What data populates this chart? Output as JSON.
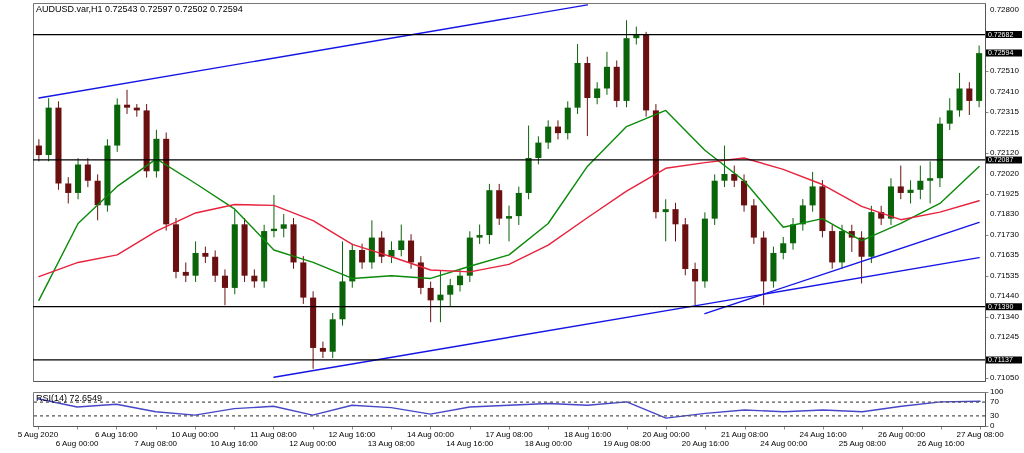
{
  "chart_data": [
    {
      "type": "candlestick",
      "title": "AUDUSD.var,H1  0.72543 0.72597 0.72502 0.72594",
      "categories": [
        "5 Aug 2020",
        null,
        null,
        null,
        "6 Aug 00:00",
        null,
        null,
        null,
        "6 Aug 16:00",
        null,
        null,
        null,
        "7 Aug 08:00",
        null,
        null,
        null,
        "10 Aug 00:00",
        null,
        null,
        null,
        "10 Aug 16:00",
        null,
        null,
        null,
        "11 Aug 08:00",
        null,
        null,
        null,
        "12 Aug 00:00",
        null,
        null,
        null,
        "12 Aug 16:00",
        null,
        null,
        null,
        "13 Aug 08:00",
        null,
        null,
        null,
        "14 Aug 00:00",
        null,
        null,
        null,
        "14 Aug 16:00",
        null,
        null,
        null,
        "17 Aug 08:00",
        null,
        null,
        null,
        "18 Aug 00:00",
        null,
        null,
        null,
        "18 Aug 16:00",
        null,
        null,
        null,
        "19 Aug 08:00",
        null,
        null,
        null,
        "20 Aug 00:00",
        null,
        null,
        null,
        "20 Aug 16:00",
        null,
        null,
        null,
        "21 Aug 08:00",
        null,
        null,
        null,
        "24 Aug 00:00",
        null,
        null,
        null,
        "24 Aug 16:00",
        null,
        null,
        null,
        "25 Aug 08:00",
        null,
        null,
        null,
        "26 Aug 00:00",
        null,
        null,
        null,
        "26 Aug 16:00",
        null,
        null,
        null,
        "27 Aug 08:00"
      ],
      "ohlc": [
        [
          0.72155,
          0.72185,
          0.7208,
          0.7211
        ],
        [
          0.7211,
          0.7238,
          0.7208,
          0.72335
        ],
        [
          0.72335,
          0.72365,
          0.71945,
          0.71975
        ],
        [
          0.71975,
          0.72005,
          0.7188,
          0.7193
        ],
        [
          0.7193,
          0.72095,
          0.719,
          0.72065
        ],
        [
          0.72065,
          0.72095,
          0.71958,
          0.71988
        ],
        [
          0.71988,
          0.72018,
          0.718,
          0.71871
        ],
        [
          0.71871,
          0.72185,
          0.71841,
          0.72155
        ],
        [
          0.72155,
          0.72379,
          0.72125,
          0.72349
        ],
        [
          0.72349,
          0.7242,
          0.72305,
          0.72335
        ],
        [
          0.72335,
          0.72352,
          0.72292,
          0.72322
        ],
        [
          0.72322,
          0.72352,
          0.72003,
          0.72033
        ],
        [
          0.72033,
          0.7223,
          0.72003,
          0.72187
        ],
        [
          0.72187,
          0.72217,
          0.71751,
          0.71781
        ],
        [
          0.71781,
          0.71811,
          0.71525,
          0.71555
        ],
        [
          0.71555,
          0.716,
          0.71507,
          0.71537
        ],
        [
          0.71537,
          0.717,
          0.71507,
          0.71645
        ],
        [
          0.71645,
          0.71675,
          0.71597,
          0.71627
        ],
        [
          0.71627,
          0.71657,
          0.71507,
          0.71537
        ],
        [
          0.71537,
          0.71567,
          0.71397,
          0.71479
        ],
        [
          0.71479,
          0.7185,
          0.71449,
          0.71781
        ],
        [
          0.71781,
          0.71811,
          0.71507,
          0.71537
        ],
        [
          0.71537,
          0.71567,
          0.7148,
          0.7151
        ],
        [
          0.7151,
          0.71779,
          0.7148,
          0.71749
        ],
        [
          0.71749,
          0.7192,
          0.71719,
          0.7176
        ],
        [
          0.7176,
          0.7183,
          0.71719,
          0.71781
        ],
        [
          0.71781,
          0.71811,
          0.7157,
          0.716
        ],
        [
          0.716,
          0.7163,
          0.71403,
          0.71433
        ],
        [
          0.71433,
          0.71463,
          0.71095,
          0.71194
        ],
        [
          0.71194,
          0.71224,
          0.71146,
          0.71176
        ],
        [
          0.71176,
          0.7136,
          0.71146,
          0.7133
        ],
        [
          0.7133,
          0.717,
          0.713,
          0.7151
        ],
        [
          0.7151,
          0.71689,
          0.7148,
          0.71659
        ],
        [
          0.71659,
          0.71689,
          0.7157,
          0.716
        ],
        [
          0.716,
          0.718,
          0.7157,
          0.71718
        ],
        [
          0.71718,
          0.71748,
          0.71597,
          0.71627
        ],
        [
          0.71627,
          0.717,
          0.71597,
          0.71659
        ],
        [
          0.71659,
          0.7178,
          0.71629,
          0.71704
        ],
        [
          0.71704,
          0.71734,
          0.7157,
          0.716
        ],
        [
          0.716,
          0.7163,
          0.71449,
          0.71479
        ],
        [
          0.71479,
          0.71509,
          0.71316,
          0.7142
        ],
        [
          0.7142,
          0.7156,
          0.71316,
          0.71447
        ],
        [
          0.71447,
          0.71522,
          0.7139,
          0.71492
        ],
        [
          0.71492,
          0.71567,
          0.71462,
          0.71537
        ],
        [
          0.71537,
          0.71748,
          0.71507,
          0.71718
        ],
        [
          0.71718,
          0.7178,
          0.71688,
          0.7173
        ],
        [
          0.7173,
          0.71973,
          0.71688,
          0.71943
        ],
        [
          0.71943,
          0.71973,
          0.71778,
          0.71808
        ],
        [
          0.71808,
          0.7187,
          0.717,
          0.7182
        ],
        [
          0.7182,
          0.7196,
          0.71778,
          0.7193
        ],
        [
          0.7193,
          0.7225,
          0.719,
          0.72096
        ],
        [
          0.72096,
          0.72199,
          0.72066,
          0.72169
        ],
        [
          0.72169,
          0.72275,
          0.72139,
          0.72245
        ],
        [
          0.72245,
          0.72275,
          0.72184,
          0.72214
        ],
        [
          0.72214,
          0.72365,
          0.72184,
          0.72335
        ],
        [
          0.72335,
          0.72637,
          0.72305,
          0.72547
        ],
        [
          0.72547,
          0.72577,
          0.722,
          0.72381
        ],
        [
          0.72381,
          0.72456,
          0.72351,
          0.72426
        ],
        [
          0.72426,
          0.726,
          0.72396,
          0.72529
        ],
        [
          0.72529,
          0.72559,
          0.72337,
          0.72367
        ],
        [
          0.72367,
          0.7275,
          0.72337,
          0.72665
        ],
        [
          0.72665,
          0.7272,
          0.72635,
          0.7268
        ],
        [
          0.7268,
          0.72695,
          0.72292,
          0.72322
        ],
        [
          0.72322,
          0.72352,
          0.71809,
          0.71839
        ],
        [
          0.71839,
          0.719,
          0.717,
          0.71853
        ],
        [
          0.71853,
          0.71883,
          0.717,
          0.71781
        ],
        [
          0.71781,
          0.71811,
          0.71539,
          0.71569
        ],
        [
          0.71569,
          0.71599,
          0.71397,
          0.7151
        ],
        [
          0.7151,
          0.71838,
          0.7148,
          0.71808
        ],
        [
          0.71808,
          0.72018,
          0.71778,
          0.71988
        ],
        [
          0.71988,
          0.72155,
          0.71958,
          0.7202
        ],
        [
          0.7202,
          0.7206,
          0.71958,
          0.71988
        ],
        [
          0.71988,
          0.72018,
          0.71841,
          0.71871
        ],
        [
          0.71871,
          0.71901,
          0.71688,
          0.71718
        ],
        [
          0.71718,
          0.71748,
          0.71397,
          0.7151
        ],
        [
          0.7151,
          0.71675,
          0.7148,
          0.71645
        ],
        [
          0.71645,
          0.71721,
          0.71615,
          0.71691
        ],
        [
          0.71691,
          0.71811,
          0.71661,
          0.71781
        ],
        [
          0.71781,
          0.71901,
          0.71751,
          0.71871
        ],
        [
          0.71871,
          0.7203,
          0.71841,
          0.71961
        ],
        [
          0.71961,
          0.71991,
          0.71719,
          0.71749
        ],
        [
          0.71749,
          0.71779,
          0.7157,
          0.716
        ],
        [
          0.716,
          0.71779,
          0.7157,
          0.71749
        ],
        [
          0.71749,
          0.71779,
          0.7165,
          0.71718
        ],
        [
          0.71718,
          0.71748,
          0.715,
          0.71627
        ],
        [
          0.71627,
          0.71869,
          0.71597,
          0.71839
        ],
        [
          0.71839,
          0.71869,
          0.71778,
          0.71808
        ],
        [
          0.71808,
          0.72,
          0.71778,
          0.71961
        ],
        [
          0.71961,
          0.7206,
          0.719,
          0.7193
        ],
        [
          0.7193,
          0.7199,
          0.7188,
          0.71945
        ],
        [
          0.71945,
          0.7206,
          0.719,
          0.71988
        ],
        [
          0.71988,
          0.7208,
          0.7188,
          0.72
        ],
        [
          0.72,
          0.72289,
          0.71958,
          0.72259
        ],
        [
          0.72259,
          0.7238,
          0.72229,
          0.72322
        ],
        [
          0.72322,
          0.725,
          0.72292,
          0.72426
        ],
        [
          0.72426,
          0.72456,
          0.723,
          0.72367
        ],
        [
          0.72367,
          0.7263,
          0.72337,
          0.72594
        ]
      ],
      "colors": [
        "#6b1010",
        "#0a640a",
        "#6b1010",
        "#6b1010",
        "#0a640a",
        "#6b1010",
        "#6b1010",
        "#0a640a",
        "#0a640a",
        "#6b1010",
        "#6b1010",
        "#6b1010",
        "#0a640a",
        "#6b1010",
        "#6b1010",
        "#6b1010",
        "#0a640a",
        "#6b1010",
        "#6b1010",
        "#6b1010",
        "#0a640a",
        "#6b1010",
        "#6b1010",
        "#0a640a",
        "#0a640a",
        "#0a640a",
        "#6b1010",
        "#6b1010",
        "#6b1010",
        "#6b1010",
        "#0a640a",
        "#0a640a",
        "#0a640a",
        "#6b1010",
        "#0a640a",
        "#6b1010",
        "#0a640a",
        "#0a640a",
        "#6b1010",
        "#6b1010",
        "#6b1010",
        "#0a640a",
        "#0a640a",
        "#0a640a",
        "#0a640a",
        "#0a640a",
        "#0a640a",
        "#6b1010",
        "#0a640a",
        "#0a640a",
        "#0a640a",
        "#0a640a",
        "#0a640a",
        "#6b1010",
        "#0a640a",
        "#0a640a",
        "#6b1010",
        "#0a640a",
        "#0a640a",
        "#6b1010",
        "#0a640a",
        "#0a640a",
        "#6b1010",
        "#6b1010",
        "#0a640a",
        "#6b1010",
        "#6b1010",
        "#6b1010",
        "#0a640a",
        "#0a640a",
        "#0a640a",
        "#6b1010",
        "#6b1010",
        "#6b1010",
        "#6b1010",
        "#0a640a",
        "#0a640a",
        "#0a640a",
        "#0a640a",
        "#0a640a",
        "#6b1010",
        "#6b1010",
        "#0a640a",
        "#6b1010",
        "#6b1010",
        "#0a640a",
        "#6b1010",
        "#0a640a",
        "#6b1010",
        "#0a640a",
        "#0a640a",
        "#0a640a",
        "#0a640a",
        "#0a640a",
        "#0a640a",
        "#6b1010",
        "#0a640a"
      ],
      "series": [
        {
          "type": "line",
          "color": "#0a8a0a",
          "x": [
            "5 Aug 2020",
            "6 Aug 00:00",
            "6 Aug 16:00",
            "7 Aug 08:00",
            "10 Aug 00:00",
            "10 Aug 16:00",
            "11 Aug 08:00",
            "12 Aug 00:00",
            "12 Aug 16:00",
            "13 Aug 08:00",
            "14 Aug 00:00",
            "14 Aug 16:00",
            "17 Aug 08:00",
            "18 Aug 00:00",
            "18 Aug 16:00",
            "19 Aug 08:00",
            "20 Aug 00:00",
            "20 Aug 16:00",
            "21 Aug 08:00",
            "24 Aug 00:00",
            "24 Aug 16:00",
            "25 Aug 08:00",
            "26 Aug 00:00",
            "26 Aug 16:00",
            "27 Aug 08:00"
          ],
          "values": [
            0.7142,
            0.71785,
            0.71961,
            0.72092,
            0.71975,
            0.71853,
            0.71659,
            0.716,
            0.71524,
            0.71537,
            0.71524,
            0.71582,
            0.71636,
            0.71785,
            0.72056,
            0.72245,
            0.72322,
            0.72133,
            0.71988,
            0.71767,
            0.71808,
            0.71704,
            0.71785,
            0.7188,
            0.72056
          ]
        },
        {
          "type": "line",
          "color": "#e8213c",
          "x": [
            "5 Aug 2020",
            "6 Aug 00:00",
            "6 Aug 16:00",
            "7 Aug 08:00",
            "10 Aug 00:00",
            "10 Aug 16:00",
            "11 Aug 08:00",
            "12 Aug 00:00",
            "12 Aug 16:00",
            "13 Aug 08:00",
            "14 Aug 00:00",
            "14 Aug 16:00",
            "17 Aug 08:00",
            "18 Aug 00:00",
            "18 Aug 16:00",
            "19 Aug 08:00",
            "20 Aug 00:00",
            "20 Aug 16:00",
            "21 Aug 08:00",
            "24 Aug 00:00",
            "24 Aug 16:00",
            "25 Aug 08:00",
            "26 Aug 00:00",
            "26 Aug 16:00",
            "27 Aug 08:00"
          ],
          "values": [
            0.71533,
            0.716,
            0.71636,
            0.71749,
            0.71835,
            0.71875,
            0.71871,
            0.71799,
            0.71686,
            0.71627,
            0.71564,
            0.71555,
            0.71591,
            0.71682,
            0.71812,
            0.71939,
            0.72047,
            0.72074,
            0.72096,
            0.72042,
            0.7197,
            0.71866,
            0.71803,
            0.71839,
            0.71893
          ]
        },
        {
          "type": "line",
          "color": "#1414e6",
          "x": [
            "5 Aug 2020",
            "18 Aug 16:00"
          ],
          "values": [
            0.72381,
            0.72823
          ]
        },
        {
          "type": "line",
          "color": "#1414e6",
          "x": [
            "11 Aug 08:00",
            "27 Aug 08:00"
          ],
          "values": [
            0.71055,
            0.71623
          ]
        },
        {
          "type": "line",
          "color": "#1414e6",
          "x": [
            "20 Aug 16:00",
            "27 Aug 08:00"
          ],
          "values": [
            0.71357,
            0.7179
          ]
        }
      ],
      "ylim": [
        0.71037,
        0.72832
      ],
      "yticks": [
        {
          "value": 0.728,
          "label": "0.72800"
        },
        {
          "value": 0.7251,
          "label": "0.72510"
        },
        {
          "value": 0.7241,
          "label": "0.72410"
        },
        {
          "value": 0.72315,
          "label": "0.72315"
        },
        {
          "value": 0.72215,
          "label": "0.72215"
        },
        {
          "value": 0.7212,
          "label": "0.72120"
        },
        {
          "value": 0.7202,
          "label": "0.72020"
        },
        {
          "value": 0.71925,
          "label": "0.71925"
        },
        {
          "value": 0.7183,
          "label": "0.71830"
        },
        {
          "value": 0.7173,
          "label": "0.71730"
        },
        {
          "value": 0.71635,
          "label": "0.71635"
        },
        {
          "value": 0.71535,
          "label": "0.71535"
        },
        {
          "value": 0.7144,
          "label": "0.71440"
        },
        {
          "value": 0.7134,
          "label": "0.71340"
        },
        {
          "value": 0.71245,
          "label": "0.71245"
        },
        {
          "value": 0.7105,
          "label": "0.71050"
        }
      ],
      "ref_lines": [
        {
          "axis": "y",
          "value": 0.72682,
          "label": "0.72682",
          "color": "#000000"
        },
        {
          "axis": "y",
          "value": 0.72087,
          "label": "0.72087",
          "color": "#000000"
        },
        {
          "axis": "y",
          "value": 0.7139,
          "label": "0.71390",
          "color": "#000000"
        },
        {
          "axis": "y",
          "value": 0.71137,
          "label": "0.71137",
          "color": "#000000"
        }
      ],
      "annotations": [
        "0.72594"
      ],
      "tick_labels": "y"
    },
    {
      "type": "line",
      "title": "RSI(14) 72.6549",
      "categories": [
        "5 Aug 2020",
        null,
        null,
        null,
        "6 Aug 00:00",
        null,
        null,
        null,
        "6 Aug 16:00",
        null,
        null,
        null,
        "7 Aug 08:00",
        null,
        null,
        null,
        "10 Aug 00:00",
        null,
        null,
        null,
        "10 Aug 16:00",
        null,
        null,
        null,
        "11 Aug 08:00",
        null,
        null,
        null,
        "12 Aug 00:00",
        null,
        null,
        null,
        "12 Aug 16:00",
        null,
        null,
        null,
        "13 Aug 08:00",
        null,
        null,
        null,
        "14 Aug 00:00",
        null,
        null,
        null,
        "14 Aug 16:00",
        null,
        null,
        null,
        "17 Aug 08:00",
        null,
        null,
        null,
        "18 Aug 00:00",
        null,
        null,
        null,
        "18 Aug 16:00",
        null,
        null,
        null,
        "19 Aug 08:00",
        null,
        null,
        null,
        "20 Aug 00:00",
        null,
        null,
        null,
        "20 Aug 16:00",
        null,
        null,
        null,
        "21 Aug 08:00",
        null,
        null,
        null,
        "24 Aug 00:00",
        null,
        null,
        null,
        "24 Aug 16:00",
        null,
        null,
        null,
        "25 Aug 08:00",
        null,
        null,
        null,
        "26 Aug 00:00",
        null,
        null,
        null,
        "26 Aug 16:00",
        null,
        null,
        null,
        "27 Aug 08:00"
      ],
      "series": [
        {
          "color": "#4646c8",
          "x": [
            "5 Aug 2020",
            "6 Aug 00:00",
            "6 Aug 16:00",
            "7 Aug 08:00",
            "10 Aug 00:00",
            "10 Aug 16:00",
            "11 Aug 08:00",
            "12 Aug 00:00",
            "12 Aug 16:00",
            "13 Aug 08:00",
            "14 Aug 00:00",
            "14 Aug 16:00",
            "17 Aug 08:00",
            "18 Aug 00:00",
            "18 Aug 16:00",
            "19 Aug 08:00",
            "20 Aug 00:00",
            "20 Aug 16:00",
            "21 Aug 08:00",
            "24 Aug 00:00",
            "24 Aug 16:00",
            "25 Aug 08:00",
            "26 Aug 00:00",
            "26 Aug 16:00",
            "27 Aug 08:00"
          ],
          "values": [
            80,
            56,
            64,
            42,
            32,
            51,
            58,
            32,
            61,
            54,
            35,
            56,
            61,
            66,
            61,
            71,
            23,
            37,
            47,
            42,
            47,
            42,
            58,
            71,
            73
          ]
        }
      ],
      "ylim": [
        0,
        100
      ],
      "yticks": [
        0,
        30,
        70,
        100
      ],
      "ref_lines": [
        {
          "axis": "y",
          "value": 70,
          "color": "#555555",
          "line_style": "dashed"
        },
        {
          "axis": "y",
          "value": 30,
          "color": "#555555",
          "line_style": "dashed"
        }
      ]
    }
  ]
}
